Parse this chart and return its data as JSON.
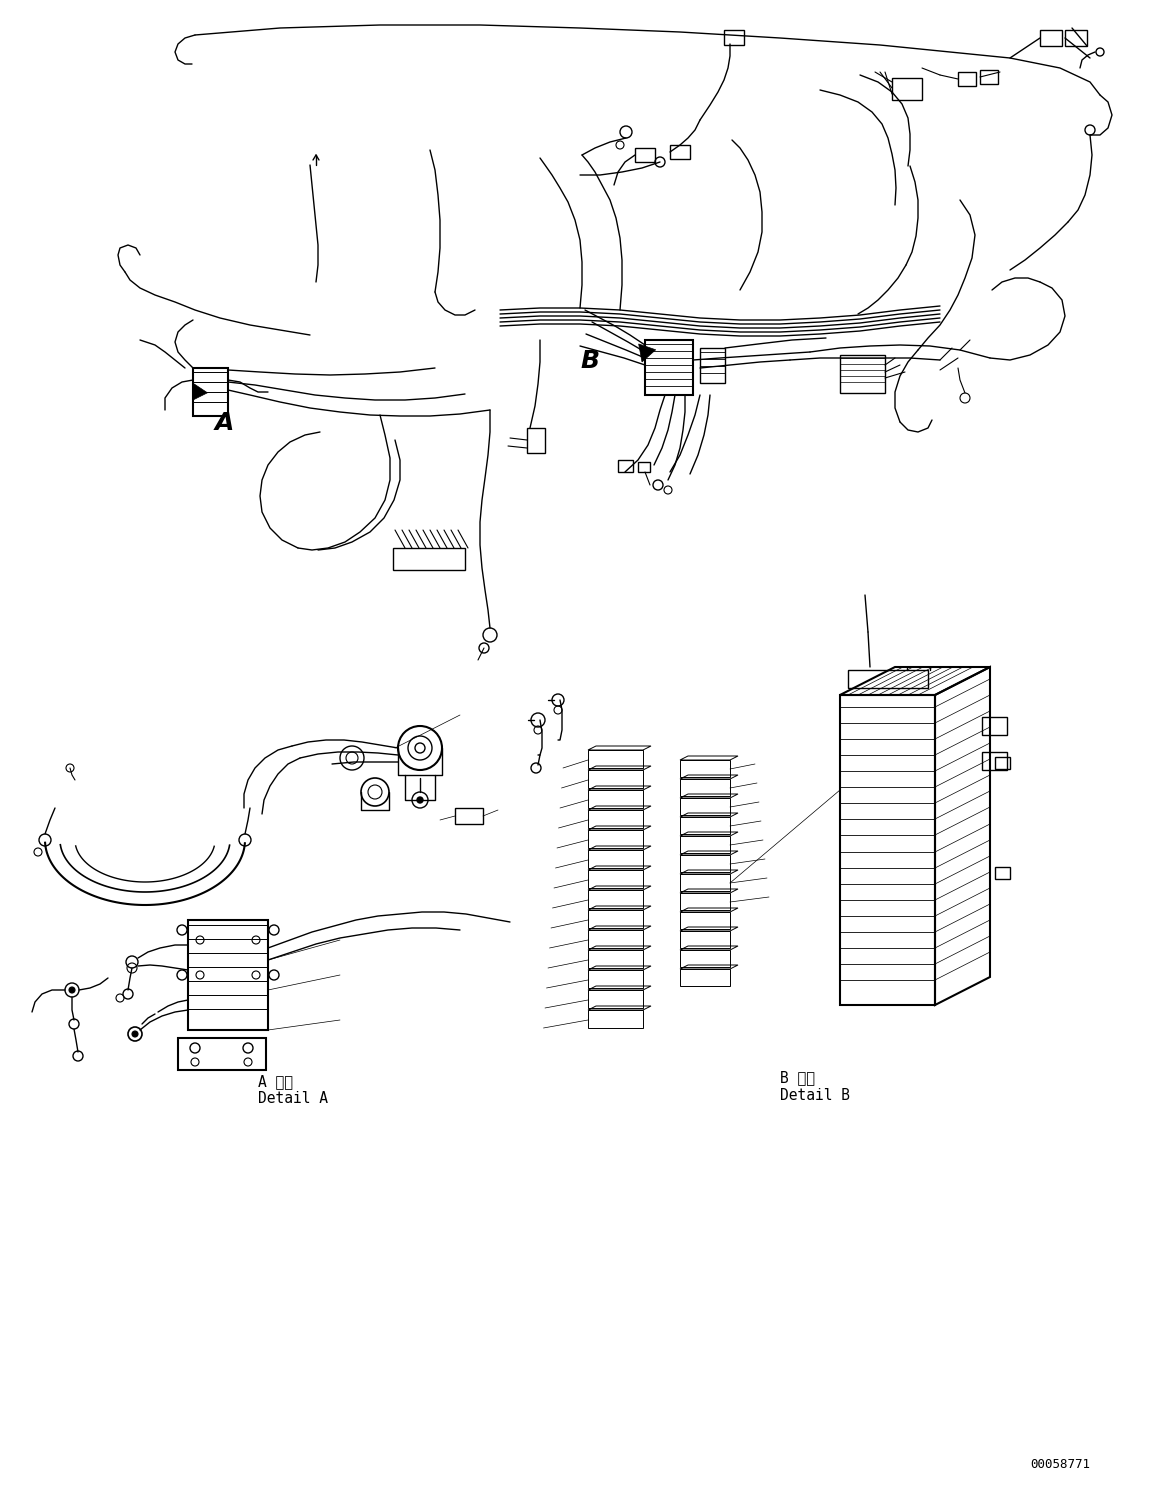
{
  "bg_color": "#ffffff",
  "line_color": "#000000",
  "fig_width": 11.63,
  "fig_height": 14.88,
  "part_number": "00058771",
  "label_a_jp": "A 詳細",
  "label_a_en": "Detail A",
  "label_b_jp": "B 詳細",
  "label_b_en": "Detail B"
}
